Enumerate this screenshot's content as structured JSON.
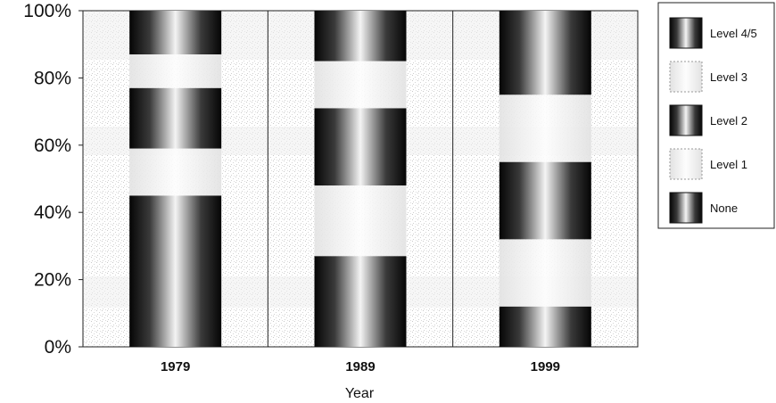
{
  "chart_data": {
    "type": "bar",
    "stacked": true,
    "percent": true,
    "xlabel": "Year",
    "ylabel": "",
    "ylim": [
      0,
      100
    ],
    "yticks": [
      "0%",
      "20%",
      "40%",
      "60%",
      "80%",
      "100%"
    ],
    "categories": [
      "1979",
      "1989",
      "1999"
    ],
    "series": [
      {
        "name": "None",
        "values": [
          45,
          27,
          12
        ],
        "style": "dark"
      },
      {
        "name": "Level 1",
        "values": [
          14,
          21,
          20
        ],
        "style": "light"
      },
      {
        "name": "Level 2",
        "values": [
          18,
          23,
          23
        ],
        "style": "dark"
      },
      {
        "name": "Level 3",
        "values": [
          10,
          14,
          20
        ],
        "style": "light"
      },
      {
        "name": "Level 4/5",
        "values": [
          13,
          15,
          25
        ],
        "style": "dark"
      }
    ],
    "legend_order": [
      "Level 4/5",
      "Level 3",
      "Level 2",
      "Level 1",
      "None"
    ],
    "legend_position": "right",
    "grid": false
  }
}
